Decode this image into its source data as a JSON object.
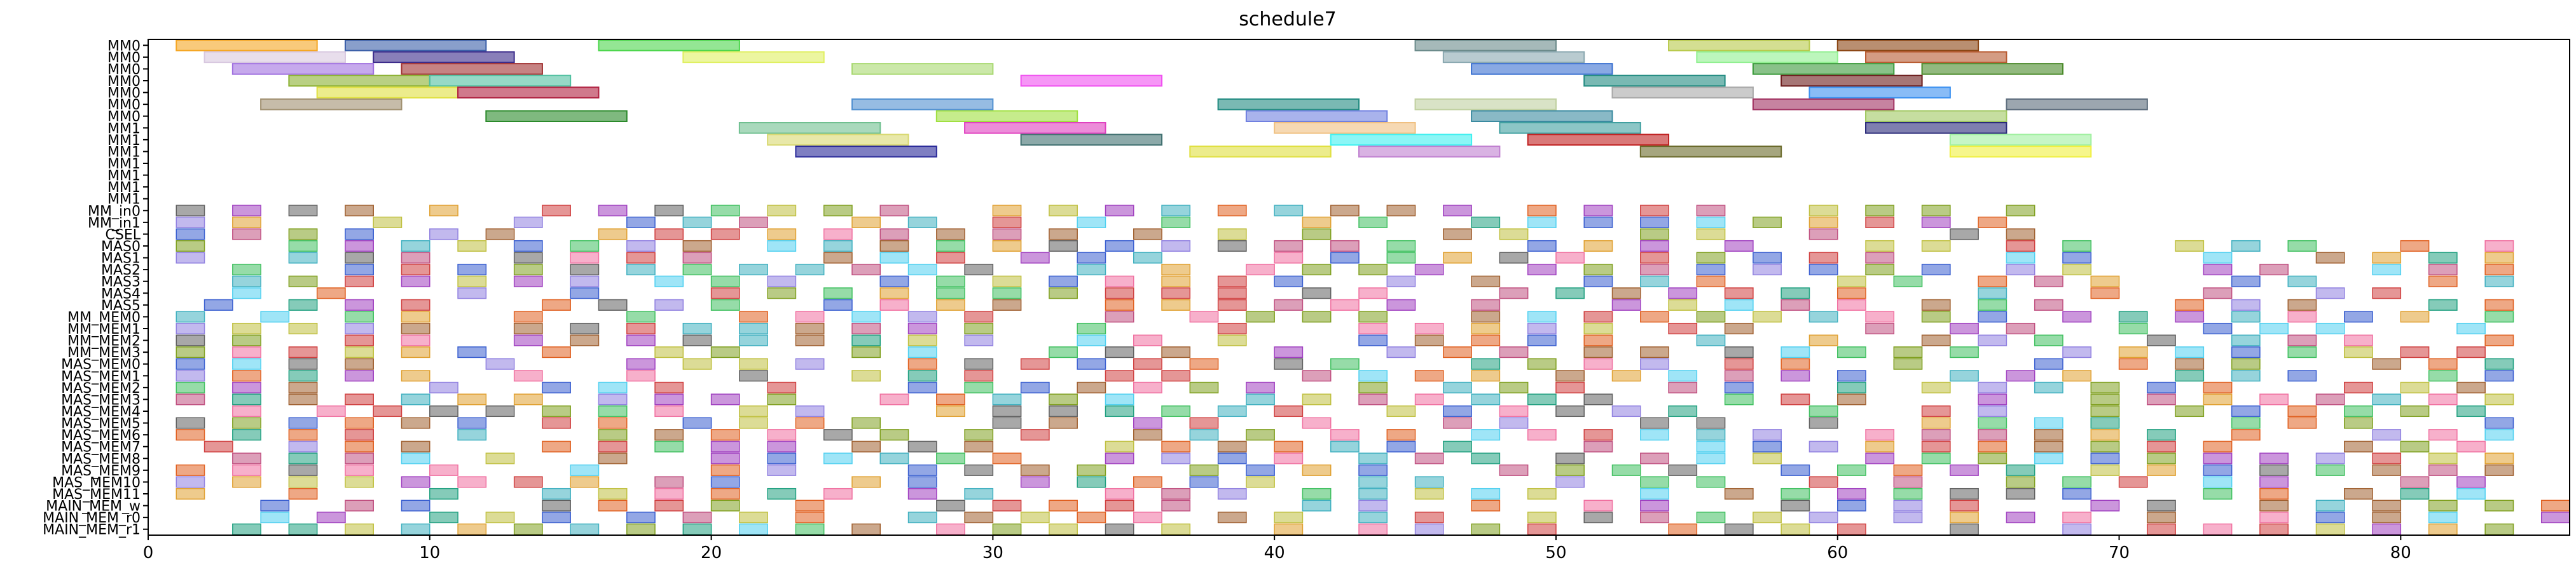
{
  "chart_data": {
    "type": "gantt",
    "title": "schedule7",
    "xlabel": "",
    "ylabel": "",
    "xlim": [
      0,
      86
    ],
    "x_ticks": [
      0,
      10,
      20,
      30,
      40,
      50,
      60,
      70,
      80
    ],
    "grid": false,
    "rows": [
      "MM0",
      "MM0",
      "MM0",
      "MM0",
      "MM0",
      "MM0",
      "MM0",
      "MM1",
      "MM1",
      "MM1",
      "MM1",
      "MM1",
      "MM1",
      "MM1",
      "MM_in0",
      "MM_in1",
      "CSEL",
      "MAS0",
      "MAS1",
      "MAS2",
      "MAS3",
      "MAS4",
      "MAS5",
      "MM_MEM0",
      "MM_MEM1",
      "MM_MEM2",
      "MM_MEM3",
      "MAS_MEM0",
      "MAS_MEM1",
      "MAS_MEM2",
      "MAS_MEM3",
      "MAS_MEM4",
      "MAS_MEM5",
      "MAS_MEM6",
      "MAS_MEM7",
      "MAS_MEM8",
      "MAS_MEM9",
      "MAS_MEM10",
      "MAS_MEM11",
      "MAIN_MEM_w",
      "MAIN_MEM_r0",
      "MAIN_MEM_r1"
    ],
    "bars": [
      [
        0,
        1,
        6,
        "#f5a623"
      ],
      [
        0,
        7,
        12,
        "#3b5fa8"
      ],
      [
        0,
        16,
        21,
        "#4cd64c"
      ],
      [
        0,
        45,
        50,
        "#6b8a8a"
      ],
      [
        0,
        54,
        59,
        "#b8c94a"
      ],
      [
        0,
        60,
        65,
        "#8b4513"
      ],
      [
        1,
        2,
        7,
        "#d8c8e0"
      ],
      [
        1,
        8,
        13,
        "#3a2a8a"
      ],
      [
        1,
        19,
        24,
        "#e0f060"
      ],
      [
        1,
        46,
        51,
        "#8aa8b0"
      ],
      [
        1,
        55,
        60,
        "#90f090"
      ],
      [
        1,
        61,
        66,
        "#b85a30"
      ],
      [
        2,
        3,
        8,
        "#a070e0"
      ],
      [
        2,
        9,
        14,
        "#a03030"
      ],
      [
        2,
        25,
        30,
        "#a8d870"
      ],
      [
        2,
        47,
        52,
        "#3a70d0"
      ],
      [
        2,
        57,
        62,
        "#3a9a3a"
      ],
      [
        2,
        63,
        68,
        "#4a8a2a"
      ],
      [
        3,
        5,
        10,
        "#8ab030"
      ],
      [
        3,
        10,
        15,
        "#50c0a0"
      ],
      [
        3,
        31,
        36,
        "#f050f0"
      ],
      [
        3,
        51,
        56,
        "#208a80"
      ],
      [
        3,
        58,
        63,
        "#6a1a1a"
      ],
      [
        4,
        6,
        11,
        "#e0e040"
      ],
      [
        4,
        11,
        16,
        "#b02040"
      ],
      [
        4,
        52,
        57,
        "#a8a8a8"
      ],
      [
        4,
        59,
        64,
        "#3a90f0"
      ],
      [
        5,
        4,
        9,
        "#a09070"
      ],
      [
        5,
        25,
        30,
        "#5090d0"
      ],
      [
        5,
        38,
        43,
        "#208a80"
      ],
      [
        5,
        45,
        50,
        "#c0d0a0"
      ],
      [
        5,
        57,
        62,
        "#a03060"
      ],
      [
        5,
        66,
        71,
        "#5a6a7a"
      ],
      [
        6,
        12,
        17,
        "#2a8a2a"
      ],
      [
        6,
        28,
        33,
        "#a0e040"
      ],
      [
        6,
        39,
        44,
        "#7080e0"
      ],
      [
        6,
        47,
        52,
        "#3a8aa0"
      ],
      [
        6,
        61,
        66,
        "#a0c860"
      ],
      [
        7,
        21,
        26,
        "#70c090"
      ],
      [
        7,
        29,
        34,
        "#e040c0"
      ],
      [
        7,
        40,
        45,
        "#f0c080"
      ],
      [
        7,
        48,
        53,
        "#40a0a0"
      ],
      [
        7,
        61,
        66,
        "#2a2a7a"
      ],
      [
        8,
        22,
        27,
        "#d8d870"
      ],
      [
        8,
        31,
        36,
        "#407070"
      ],
      [
        8,
        42,
        47,
        "#40f0f0"
      ],
      [
        8,
        49,
        54,
        "#c02020"
      ],
      [
        8,
        64,
        69,
        "#a0f0a0"
      ],
      [
        9,
        23,
        28,
        "#2a2a9a"
      ],
      [
        9,
        37,
        42,
        "#e0e040"
      ],
      [
        9,
        43,
        48,
        "#c080d0"
      ],
      [
        9,
        53,
        58,
        "#6a6a2a"
      ],
      [
        9,
        64,
        69,
        "#f0f040"
      ]
    ]
  }
}
